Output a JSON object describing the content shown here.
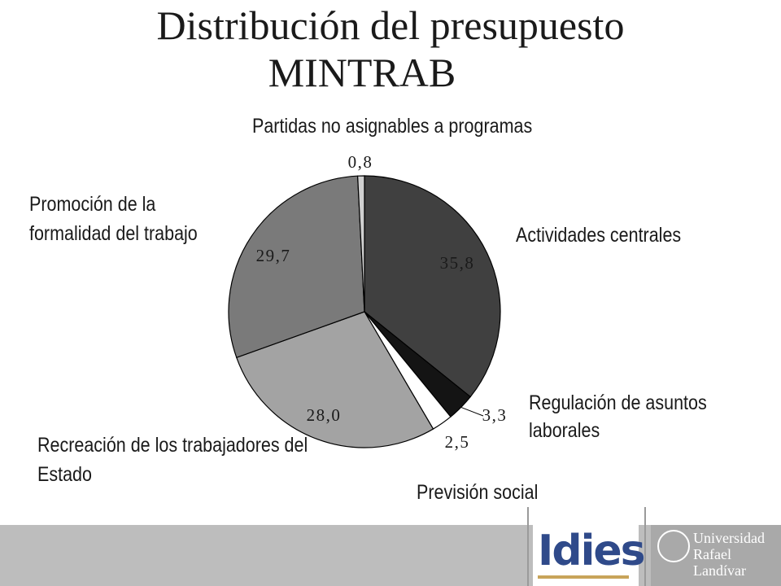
{
  "title_line1": "Distribución del presupuesto",
  "title_line2": "MINTRAB",
  "chart_data": {
    "type": "pie",
    "title": "Distribución del presupuesto MINTRAB",
    "slices": [
      {
        "label": "Actividades centrales",
        "value": 35.8,
        "display": "35,8",
        "color": "#404040"
      },
      {
        "label": "Regulación de asuntos laborales",
        "value": 3.3,
        "display": "3,3",
        "color": "#141414"
      },
      {
        "label": "Previsión social",
        "value": 2.5,
        "display": "2,5",
        "color": "#ffffff"
      },
      {
        "label": "Recreación de los trabajadores del Estado",
        "value": 28.0,
        "display": "28,0",
        "color": "#a3a3a3"
      },
      {
        "label": "Promoción de la formalidad del trabajo",
        "value": 29.7,
        "display": "29,7",
        "color": "#7a7a7a"
      },
      {
        "label": "Partidas no asignables a programas",
        "value": 0.8,
        "display": "0,8",
        "color": "#d0d0d0"
      }
    ],
    "value_label_color": "#1a1a1a"
  },
  "labels": {
    "partidas": "Partidas no asignables a programas",
    "actividades": "Actividades centrales",
    "promocion_1": "Promoción de la",
    "promocion_2": "formalidad del trabajo",
    "regulacion_1": "Regulación de asuntos",
    "regulacion_2": "laborales",
    "recreacion_1": "Recreación de los trabajadores del",
    "recreacion_2": "Estado",
    "prevision": "Previsión social"
  },
  "footer": {
    "logo_idies": "Idies",
    "logo_url_line1": "Universidad",
    "logo_url_line2": "Rafael Landívar"
  }
}
